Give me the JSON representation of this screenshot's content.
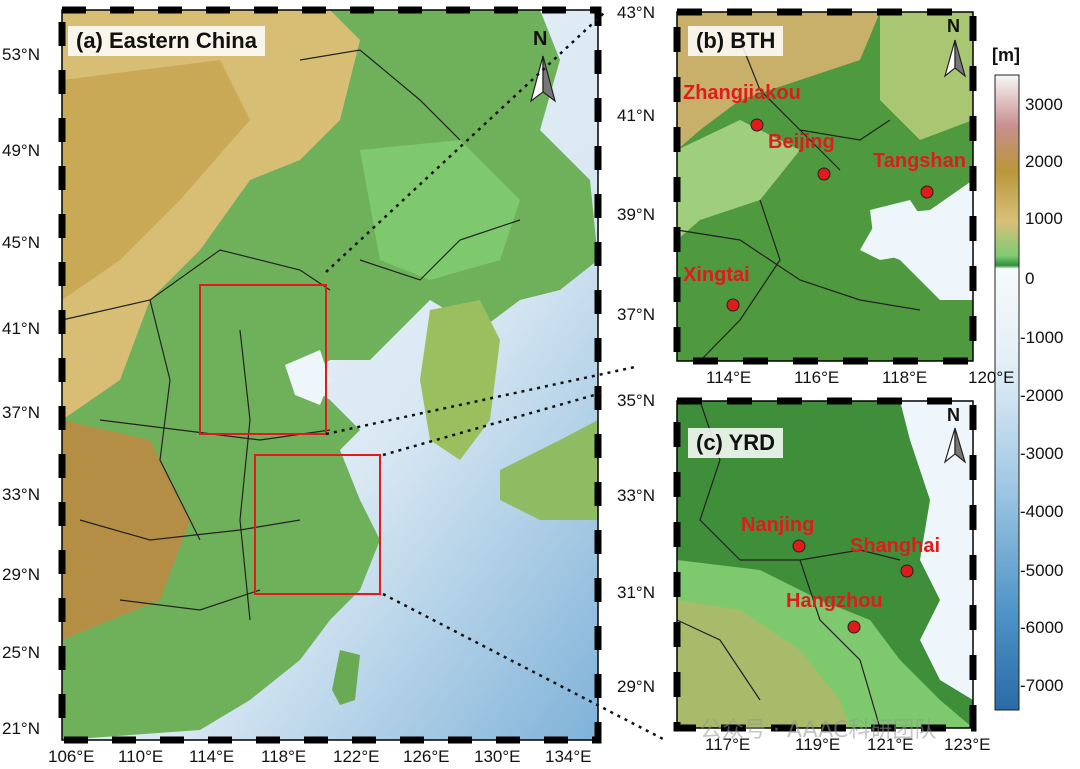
{
  "panels": {
    "a": {
      "title": "(a) Eastern China",
      "lat_labels": [
        "53°N",
        "49°N",
        "45°N",
        "41°N",
        "37°N",
        "33°N",
        "29°N",
        "25°N",
        "21°N"
      ],
      "lon_labels": [
        "106°E",
        "110°E",
        "114°E",
        "118°E",
        "122°E",
        "126°E",
        "130°E",
        "134°E"
      ],
      "north": "N"
    },
    "b": {
      "title": "(b) BTH",
      "lat_labels": [
        "43°N",
        "41°N",
        "39°N",
        "37°N"
      ],
      "lon_labels": [
        "114°E",
        "116°E",
        "118°E",
        "120°E"
      ],
      "north": "N",
      "cities": [
        "Zhangjiakou",
        "Beijing",
        "Tangshan",
        "Xingtai"
      ]
    },
    "c": {
      "title": "(c) YRD",
      "lat_labels": [
        "35°N",
        "33°N",
        "31°N",
        "29°N"
      ],
      "lon_labels": [
        "117°E",
        "119°E",
        "121°E",
        "123°E"
      ],
      "north": "N",
      "cities": [
        "Nanjing",
        "Shanghai",
        "Hangzhou"
      ]
    }
  },
  "colorbar": {
    "unit": "[m]",
    "ticks": [
      "3000",
      "2000",
      "1000",
      "0",
      "-1000",
      "-2000",
      "-3000",
      "-4000",
      "-5000",
      "-6000",
      "-7000"
    ],
    "colors": {
      "high": "#f2f2f2",
      "mid_high": "#b89a3a",
      "land_low": "#3f8e3a",
      "sea_shallow": "#eef6fb",
      "sea_deep": "#2b79b8"
    }
  },
  "watermark": "公众号 · AAAC科研团队"
}
